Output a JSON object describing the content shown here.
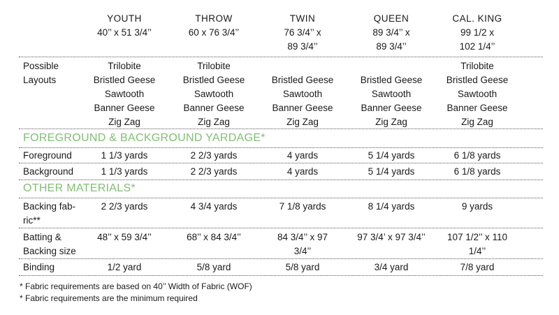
{
  "columns": [
    {
      "name": "YOUTH",
      "size": [
        "40’’ x 51 3/4’’"
      ]
    },
    {
      "name": "THROW",
      "size": [
        "60 x 76 3/4’’"
      ]
    },
    {
      "name": "TWIN",
      "size": [
        "76 3/4’’ x",
        "89 3/4’’"
      ]
    },
    {
      "name": "QUEEN",
      "size": [
        "89 3/4’’ x",
        "89 3/4’’"
      ]
    },
    {
      "name": "CAL. KING",
      "size": [
        "99 1/2 x",
        "102 1/4’’"
      ]
    }
  ],
  "layouts": {
    "label": [
      "Possible",
      "Layouts"
    ],
    "values": [
      [
        "Trilobite",
        "Bristled Geese",
        "Sawtooth",
        "Banner Geese",
        "Zig Zag"
      ],
      [
        "Trilobite",
        "Bristled Geese",
        "Sawtooth",
        "Banner Geese",
        "Zig Zag"
      ],
      [
        "",
        "Bristled Geese",
        "Sawtooth",
        "Banner Geese",
        "Zig Zag"
      ],
      [
        "",
        "Bristled Geese",
        "Sawtooth",
        "Banner Geese",
        "Zig Zag"
      ],
      [
        "Trilobite",
        "Bristled Geese",
        "Sawtooth",
        "Banner Geese",
        "Zig Zag"
      ]
    ]
  },
  "section1": "FOREGROUND & BACKGROUND YARDAGE*",
  "foreground": {
    "label": "Foreground",
    "values": [
      "1 1/3 yards",
      "2 2/3 yards",
      "4 yards",
      "5 1/4 yards",
      "6 1/8 yards"
    ]
  },
  "background": {
    "label": "Background",
    "values": [
      "1 1/3 yards",
      "2 2/3 yards",
      "4 yards",
      "5 1/4 yards",
      "6 1/8 yards"
    ]
  },
  "section2": "OTHER MATERIALS*",
  "backing": {
    "label": [
      "Backing fab-",
      "ric**"
    ],
    "values": [
      [
        "2 2/3 yards"
      ],
      [
        "4 3/4 yards"
      ],
      [
        "7 1/8 yards"
      ],
      [
        "8 1/4 yards"
      ],
      [
        "9 yards"
      ]
    ]
  },
  "batting": {
    "label": [
      "Batting &",
      "Backing size"
    ],
    "values": [
      [
        "48’’ x 59 3/4’’"
      ],
      [
        "68’’ x 84 3/4’’"
      ],
      [
        "84 3/4’’ x 97",
        "3/4’’"
      ],
      [
        "97 3/4’ x 97 3/4’’"
      ],
      [
        "107 1/2’’ x 110",
        "1/4’’"
      ]
    ]
  },
  "binding": {
    "label": "Binding",
    "values": [
      "1/2 yard",
      "5/8 yard",
      "5/8 yard",
      "3/4 yard",
      "7/8 yard"
    ]
  },
  "footnotes": [
    "* Fabric requirements are based on 40’’ Width of Fabric (WOF)",
    "* Fabric requirements are the minimum required"
  ],
  "colors": {
    "section_heading": "#7fbf72"
  }
}
